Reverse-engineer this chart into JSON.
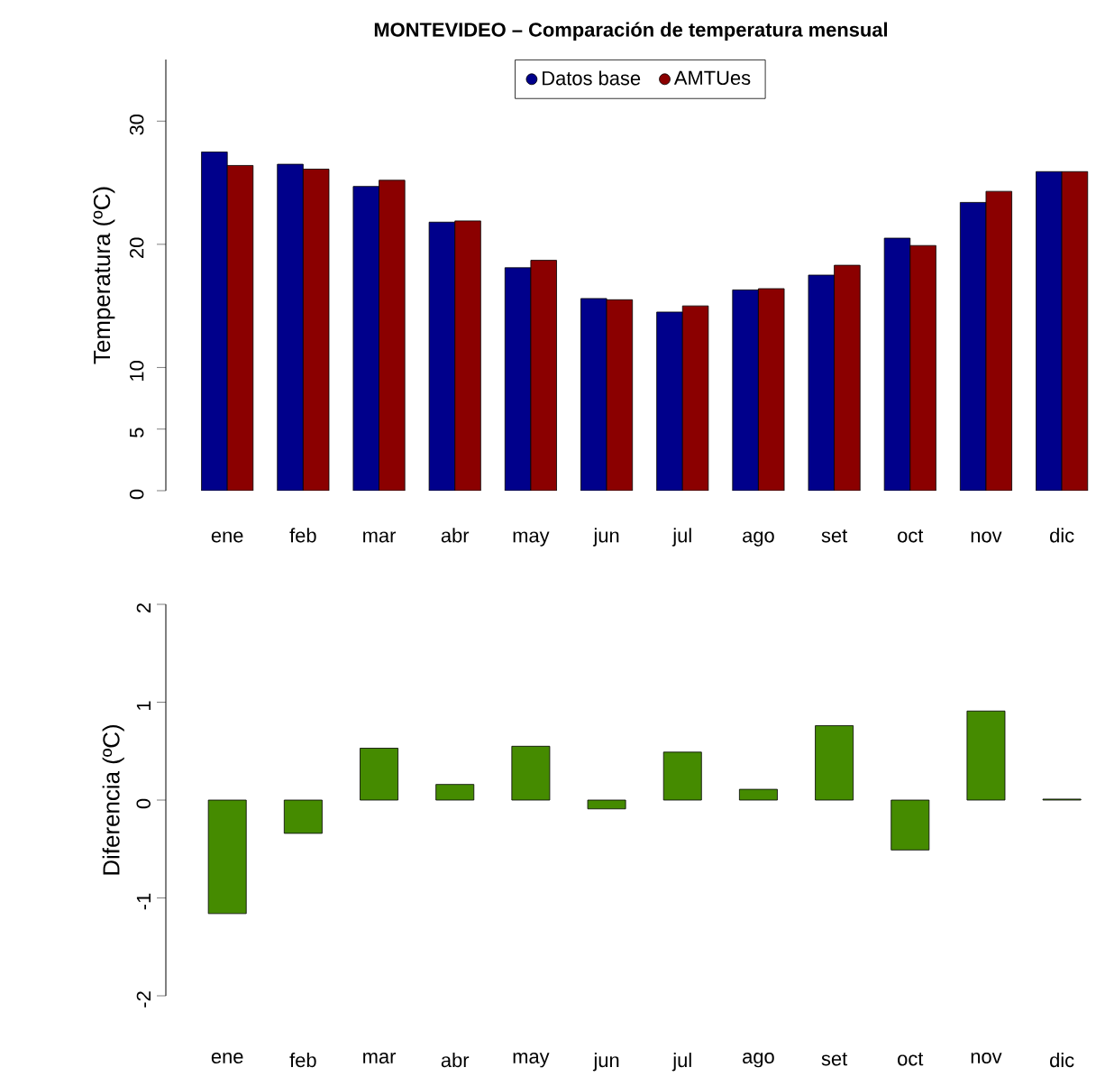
{
  "chart_data": [
    {
      "type": "bar",
      "title": "MONTEVIDEO – Comparación de temperatura mensual",
      "ylabel": "Temperatura (ºC)",
      "categories": [
        "ene",
        "feb",
        "mar",
        "abr",
        "may",
        "jun",
        "jul",
        "ago",
        "set",
        "oct",
        "nov",
        "dic"
      ],
      "series": [
        {
          "name": "Datos base",
          "color": "#00008b",
          "values": [
            27.5,
            26.5,
            24.7,
            21.8,
            18.1,
            15.6,
            14.5,
            16.3,
            17.5,
            20.5,
            23.4,
            25.9
          ]
        },
        {
          "name": "AMTUes",
          "color": "#8b0000",
          "values": [
            26.4,
            26.1,
            25.2,
            21.9,
            18.7,
            15.5,
            15.0,
            16.4,
            18.3,
            19.9,
            24.3,
            25.9
          ]
        }
      ],
      "ylim": [
        0,
        35
      ],
      "yticks": [
        0,
        5,
        10,
        20,
        30
      ],
      "legend": "top"
    },
    {
      "type": "bar",
      "ylabel": "Diferencia (ºC)",
      "categories": [
        "ene",
        "feb",
        "mar",
        "abr",
        "may",
        "jun",
        "jul",
        "ago",
        "set",
        "oct",
        "nov",
        "dic"
      ],
      "color": "#458b00",
      "values": [
        -1.16,
        -0.34,
        0.53,
        0.16,
        0.55,
        -0.09,
        0.49,
        0.11,
        0.76,
        -0.51,
        0.91,
        0.01
      ],
      "ylim": [
        -2,
        2
      ],
      "yticks": [
        -2,
        -1,
        0,
        1,
        2
      ]
    }
  ]
}
